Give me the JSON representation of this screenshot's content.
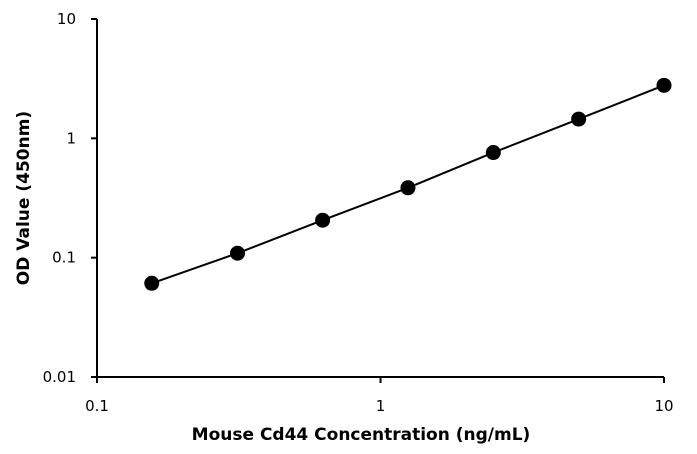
{
  "chart_data": {
    "type": "scatter",
    "title": "",
    "xlabel": "Mouse Cd44 Concentration (ng/mL)",
    "ylabel": "OD Value (450nm)",
    "xscale": "log",
    "yscale": "log",
    "xlim": [
      0.1,
      10
    ],
    "ylim": [
      0.01,
      10
    ],
    "x_ticks": [
      0.1,
      1,
      10
    ],
    "x_tick_labels": [
      "0.1",
      "1",
      "10"
    ],
    "y_ticks": [
      0.01,
      0.1,
      1,
      10
    ],
    "y_tick_labels": [
      "0.01",
      "0.1",
      "1",
      "10"
    ],
    "grid": false,
    "legend": "none",
    "marker_color": "#000000",
    "line_color": "#000000",
    "series": [
      {
        "x": [
          0.156,
          0.313,
          0.625,
          1.25,
          2.5,
          5,
          10
        ],
        "y": [
          0.061,
          0.109,
          0.206,
          0.385,
          0.76,
          1.45,
          2.78
        ]
      }
    ]
  }
}
